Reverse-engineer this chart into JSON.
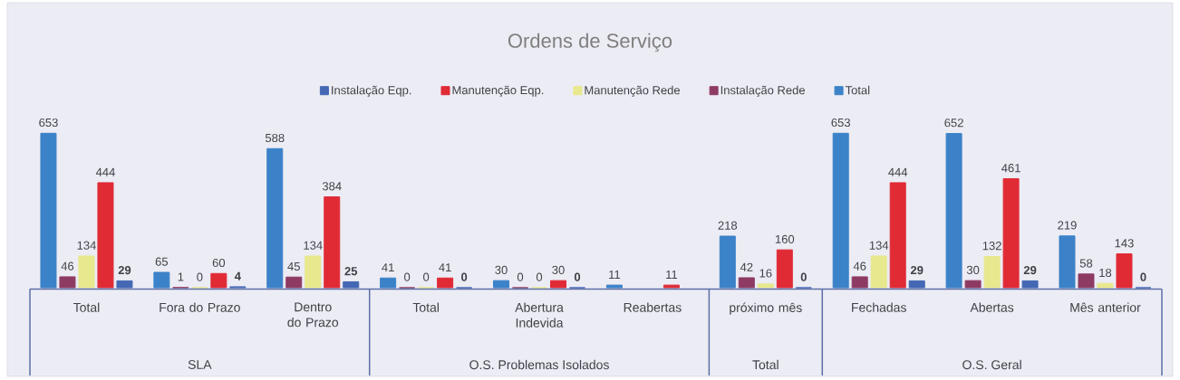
{
  "chart_data": {
    "type": "bar",
    "title": "Ordens de Serviço",
    "categories": [
      "Total",
      "Fora do Prazo",
      "Dentro do Prazo",
      "Total",
      "Abertura Indevida",
      "Reabertas",
      "próximo mês",
      "Fechadas",
      "Abertas",
      "Mês anterior"
    ],
    "series": [
      {
        "name": "Total",
        "color": "#3b82c8",
        "values": [
          653,
          65,
          588,
          41,
          30,
          11,
          218,
          653,
          652,
          219
        ]
      },
      {
        "name": "Instalação Rede",
        "color": "#8e3b63",
        "values": [
          46,
          1,
          45,
          0,
          0,
          null,
          42,
          46,
          30,
          58
        ]
      },
      {
        "name": "Manutenção Rede",
        "color": "#e8e88e",
        "values": [
          134,
          0,
          134,
          0,
          0,
          null,
          16,
          134,
          132,
          18
        ]
      },
      {
        "name": "Manutenção Eqp.",
        "color": "#e02b35",
        "values": [
          444,
          60,
          384,
          41,
          30,
          11,
          160,
          444,
          461,
          143
        ]
      },
      {
        "name": "Instalação Eqp.",
        "color": "#4468b4",
        "values": [
          29,
          4,
          25,
          0,
          0,
          null,
          0,
          29,
          29,
          0
        ]
      }
    ],
    "data_labels": true,
    "legend": "top",
    "tick_labels": "x",
    "annotations": [
      "SLA",
      "O.S. Problemas Isolados",
      "Total",
      "O.S. Geral"
    ]
  }
}
